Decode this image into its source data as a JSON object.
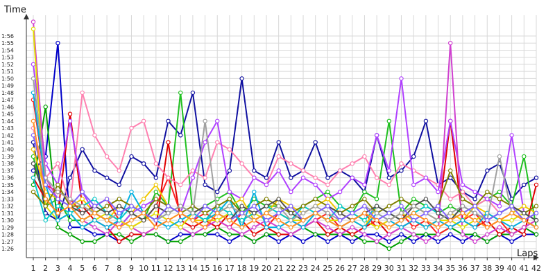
{
  "chart_data": {
    "type": "line",
    "ylabel": "Time",
    "xlabel": "Laps",
    "grid": true,
    "x_range": [
      1,
      42
    ],
    "y_range_seconds": [
      84,
      120
    ],
    "x_ticks": [
      1,
      2,
      3,
      4,
      5,
      6,
      7,
      8,
      9,
      10,
      11,
      12,
      13,
      14,
      15,
      16,
      17,
      18,
      19,
      20,
      21,
      22,
      23,
      24,
      25,
      26,
      27,
      28,
      29,
      30,
      31,
      32,
      33,
      34,
      35,
      36,
      37,
      38,
      39,
      40,
      41,
      42
    ],
    "y_ticks": [
      "1:26",
      "1:27",
      "1:28",
      "1:29",
      "1:30",
      "1:31",
      "1:32",
      "1:33",
      "1:34",
      "1:35",
      "1:36",
      "1:37",
      "1:38",
      "1:39",
      "1:40",
      "1:41",
      "1:42",
      "1:43",
      "1:44",
      "1:45",
      "1:46",
      "1:47",
      "1:48",
      "1:49",
      "1:50",
      "1:51",
      "1:52",
      "1:53",
      "1:54",
      "1:55",
      "1:56"
    ],
    "series": [
      {
        "color": "#0000c8",
        "values": [
          97,
          99,
          115,
          89,
          89,
          88,
          88,
          87,
          88,
          88,
          88,
          87,
          88,
          88,
          88,
          88,
          87,
          88,
          87,
          88,
          87,
          88,
          87,
          88,
          87,
          88,
          87,
          88,
          88,
          87,
          88,
          87,
          88,
          87,
          88,
          87,
          88,
          87,
          88,
          87,
          88,
          88
        ]
      },
      {
        "color": "#1010a0",
        "values": [
          101,
          91,
          90,
          96,
          100,
          97,
          96,
          95,
          99,
          98,
          96,
          104,
          102,
          108,
          95,
          94,
          97,
          110,
          97,
          96,
          101,
          96,
          97,
          101,
          96,
          97,
          96,
          94,
          102,
          96,
          97,
          99,
          104,
          95,
          96,
          94,
          93,
          97,
          98,
          93,
          95,
          96
        ]
      },
      {
        "color": "#00a000",
        "values": [
          95,
          106,
          89,
          88,
          87,
          87,
          88,
          88,
          87,
          88,
          88,
          87,
          87,
          88,
          88,
          89,
          88,
          88,
          87,
          88,
          88,
          88,
          89,
          88,
          88,
          88,
          88,
          87,
          87,
          86,
          87,
          88,
          88,
          88,
          89,
          88,
          88,
          87,
          88,
          88,
          89,
          88
        ]
      },
      {
        "color": "#20c020",
        "values": [
          99,
          92,
          93,
          90,
          90,
          91,
          90,
          89,
          91,
          90,
          94,
          92,
          108,
          91,
          92,
          93,
          94,
          91,
          93,
          92,
          92,
          91,
          92,
          93,
          94,
          92,
          91,
          94,
          93,
          104,
          91,
          93,
          92,
          91,
          92,
          91,
          92,
          93,
          94,
          92,
          99,
          89
        ]
      },
      {
        "color": "#e00000",
        "values": [
          96,
          93,
          91,
          105,
          92,
          90,
          89,
          87,
          88,
          88,
          89,
          101,
          90,
          89,
          90,
          89,
          91,
          90,
          88,
          89,
          88,
          88,
          89,
          90,
          88,
          89,
          88,
          89,
          90,
          88,
          89,
          90,
          89,
          90,
          104,
          90,
          89,
          90,
          88,
          89,
          88,
          95
        ]
      },
      {
        "color": "#ff2020",
        "values": [
          107,
          95,
          94,
          93,
          91,
          92,
          93,
          90,
          89,
          90,
          92,
          96,
          91,
          90,
          91,
          90,
          89,
          91,
          90,
          89,
          91,
          90,
          89,
          90,
          91,
          89,
          90,
          91,
          89,
          90,
          91,
          89,
          90,
          88,
          89,
          90,
          91,
          89,
          90,
          88,
          89,
          90
        ]
      },
      {
        "color": "#ff80b0",
        "values": [
          103,
          96,
          98,
          92,
          108,
          102,
          99,
          97,
          103,
          104,
          98,
          96,
          95,
          97,
          96,
          101,
          100,
          98,
          96,
          95,
          99,
          98,
          97,
          96,
          95,
          97,
          98,
          99,
          96,
          95,
          98,
          97,
          96,
          95,
          93,
          94,
          92,
          93,
          91,
          92,
          90,
          89
        ]
      },
      {
        "color": "#b040ff",
        "values": [
          112,
          98,
          95,
          104,
          94,
          91,
          90,
          89,
          91,
          92,
          93,
          92,
          91,
          96,
          101,
          104,
          94,
          93,
          96,
          95,
          97,
          94,
          96,
          95,
          93,
          94,
          96,
          95,
          102,
          97,
          110,
          95,
          96,
          94,
          104,
          95,
          94,
          93,
          92,
          102,
          91,
          90
        ]
      },
      {
        "color": "#d040d0",
        "values": [
          118,
          96,
          93,
          92,
          90,
          89,
          88,
          90,
          89,
          88,
          89,
          90,
          89,
          88,
          89,
          90,
          89,
          88,
          89,
          90,
          89,
          88,
          89,
          90,
          89,
          88,
          89,
          88,
          87,
          88,
          89,
          88,
          87,
          88,
          115,
          88,
          87,
          88,
          89,
          88,
          89,
          90
        ]
      },
      {
        "color": "#e0e000",
        "values": [
          117,
          92,
          90,
          91,
          89,
          90,
          91,
          90,
          89,
          90,
          91,
          90,
          89,
          91,
          90,
          90,
          91,
          90,
          91,
          90,
          91,
          90,
          90,
          91,
          90,
          90,
          91,
          90,
          89,
          90,
          91,
          90,
          89,
          90,
          90,
          89,
          90,
          91,
          90,
          90,
          91,
          90
        ]
      },
      {
        "color": "#f0c800",
        "values": [
          100,
          94,
          93,
          92,
          93,
          91,
          90,
          92,
          91,
          93,
          95,
          92,
          91,
          90,
          90,
          91,
          92,
          93,
          90,
          91,
          93,
          92,
          91,
          92,
          93,
          91,
          90,
          89,
          92,
          91,
          90,
          92,
          91,
          90,
          91,
          90,
          92,
          91,
          90,
          91,
          92,
          91
        ]
      },
      {
        "color": "#00b0e0",
        "values": [
          108,
          95,
          90,
          91,
          89,
          90,
          89,
          90,
          94,
          91,
          90,
          89,
          90,
          91,
          90,
          91,
          93,
          89,
          94,
          89,
          89,
          90,
          89,
          91,
          90,
          89,
          90,
          89,
          91,
          90,
          89,
          90,
          89,
          90,
          89,
          90,
          89,
          91,
          90,
          89,
          90,
          89
        ]
      },
      {
        "color": "#00c8c8",
        "values": [
          96,
          90,
          92,
          91,
          92,
          93,
          91,
          90,
          92,
          91,
          90,
          91,
          92,
          91,
          90,
          92,
          91,
          90,
          91,
          92,
          91,
          90,
          92,
          91,
          90,
          92,
          91,
          90,
          92,
          91,
          90,
          91,
          92,
          91,
          90,
          92,
          91,
          90,
          91,
          92,
          91,
          90
        ]
      },
      {
        "color": "#808000",
        "values": [
          94,
          92,
          95,
          92,
          92,
          91,
          92,
          93,
          92,
          91,
          93,
          92,
          91,
          92,
          91,
          92,
          93,
          91,
          92,
          93,
          92,
          91,
          92,
          93,
          92,
          91,
          92,
          93,
          91,
          92,
          93,
          92,
          91,
          92,
          97,
          93,
          92,
          94,
          93,
          92,
          91,
          92
        ]
      },
      {
        "color": "#505050",
        "values": [
          98,
          93,
          91,
          92,
          91,
          92,
          91,
          92,
          91,
          90,
          92,
          91,
          92,
          91,
          92,
          91,
          90,
          92,
          91,
          92,
          93,
          91,
          90,
          91,
          92,
          91,
          90,
          91,
          92,
          91,
          90,
          92,
          93,
          91,
          90,
          92,
          91,
          90,
          91,
          92,
          91,
          90
        ]
      },
      {
        "color": "#a0a0a0",
        "values": [
          110,
          96,
          94,
          93,
          92,
          91,
          90,
          91,
          92,
          91,
          90,
          91,
          92,
          91,
          104,
          91,
          92,
          91,
          90,
          91,
          92,
          90,
          91,
          92,
          91,
          90,
          91,
          92,
          91,
          90,
          91,
          92,
          91,
          90,
          91,
          92,
          91,
          90,
          99,
          91,
          90,
          91
        ]
      },
      {
        "color": "#8060ff",
        "values": [
          102,
          95,
          93,
          92,
          94,
          92,
          93,
          91,
          92,
          91,
          90,
          92,
          91,
          90,
          92,
          91,
          90,
          91,
          92,
          90,
          91,
          92,
          90,
          91,
          92,
          90,
          91,
          92,
          90,
          91,
          92,
          90,
          91,
          92,
          90,
          91,
          92,
          90,
          91,
          92,
          90,
          91
        ]
      },
      {
        "color": "#ff9020",
        "values": [
          104,
          93,
          91,
          92,
          90,
          91,
          90,
          89,
          90,
          91,
          89,
          90,
          91,
          90,
          89,
          91,
          90,
          89,
          90,
          91,
          90,
          89,
          90,
          91,
          90,
          89,
          90,
          91,
          90,
          89,
          90,
          91,
          90,
          89,
          90,
          91,
          90,
          89,
          90,
          91,
          90,
          89
        ]
      }
    ]
  }
}
